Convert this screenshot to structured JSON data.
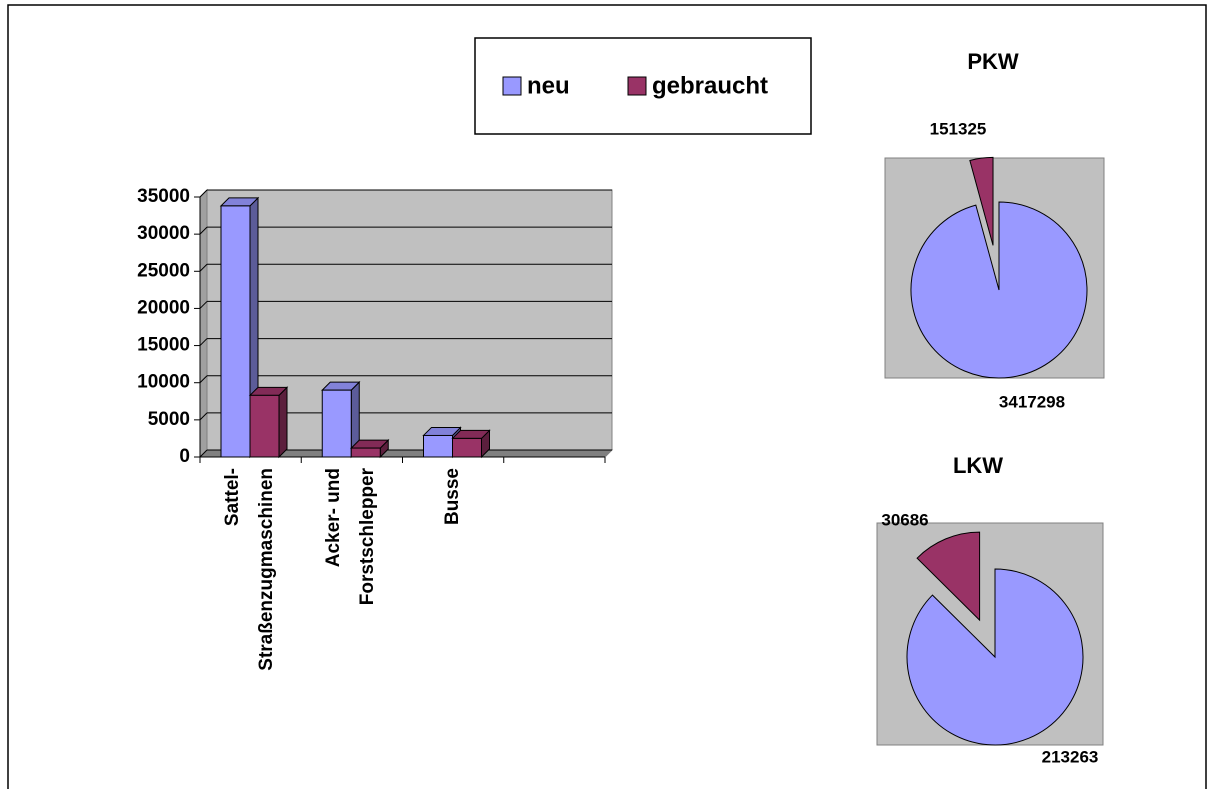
{
  "chart_data": [
    {
      "type": "bar",
      "categories": [
        "Sattel-\nStraßenzugmaschinen",
        "Acker- und\nForstschlepper",
        "Busse",
        null
      ],
      "series": [
        {
          "name": "neu",
          "color": "#9999ff",
          "values": [
            33800,
            9000,
            2900,
            null
          ]
        },
        {
          "name": "gebraucht",
          "color": "#993366",
          "values": [
            8300,
            1200,
            2500,
            null
          ]
        }
      ],
      "ylim": [
        0,
        35000
      ],
      "yticks": [
        0,
        5000,
        10000,
        15000,
        20000,
        25000,
        30000,
        35000
      ],
      "grid": true
    },
    {
      "type": "pie",
      "title": "PKW",
      "values": [
        3417298,
        151325
      ],
      "colors": [
        "#9999ff",
        "#993366"
      ]
    },
    {
      "type": "pie",
      "title": "LKW",
      "values": [
        213263,
        30686
      ],
      "colors": [
        "#9999ff",
        "#993366"
      ]
    }
  ]
}
